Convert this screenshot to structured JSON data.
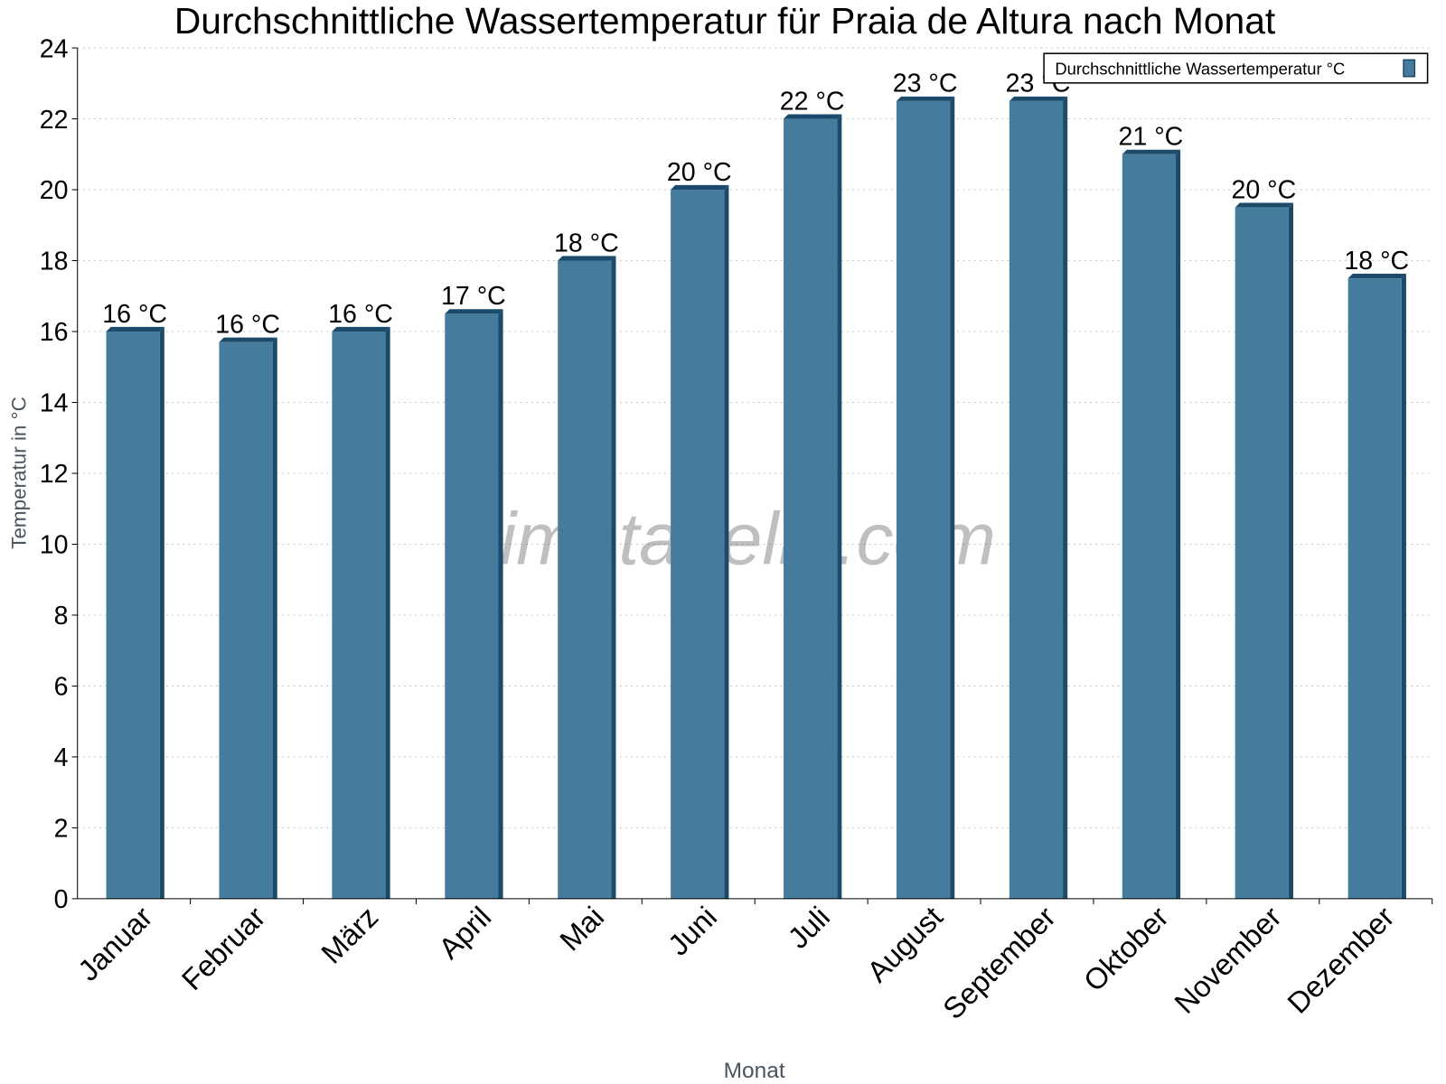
{
  "chart_data": {
    "type": "bar",
    "title": "Durchschnittliche Wassertemperatur für Praia de Altura nach Monat",
    "xlabel": "Monat",
    "ylabel": "Temperatur in °C",
    "categories": [
      "Januar",
      "Februar",
      "März",
      "April",
      "Mai",
      "Juni",
      "Juli",
      "August",
      "September",
      "Oktober",
      "November",
      "Dezember"
    ],
    "series": [
      {
        "name": "Durchschnittliche Wassertemperatur °C",
        "values": [
          16.0,
          15.7,
          16.0,
          16.5,
          18.0,
          20.0,
          22.0,
          22.5,
          22.5,
          21.0,
          19.5,
          17.5
        ],
        "labels": [
          "16 °C",
          "16 °C",
          "16 °C",
          "17 °C",
          "18 °C",
          "20 °C",
          "22 °C",
          "23 °C",
          "23 °C",
          "21 °C",
          "20 °C",
          "18 °C"
        ],
        "color": "#457b9d",
        "side_color": "#1b4a6b"
      }
    ],
    "ylim": [
      0,
      24
    ],
    "yticks": [
      0,
      2,
      4,
      6,
      8,
      10,
      12,
      14,
      16,
      18,
      20,
      22,
      24
    ],
    "grid": true,
    "legend": "top-right",
    "watermark": "klimatabelle.com"
  }
}
